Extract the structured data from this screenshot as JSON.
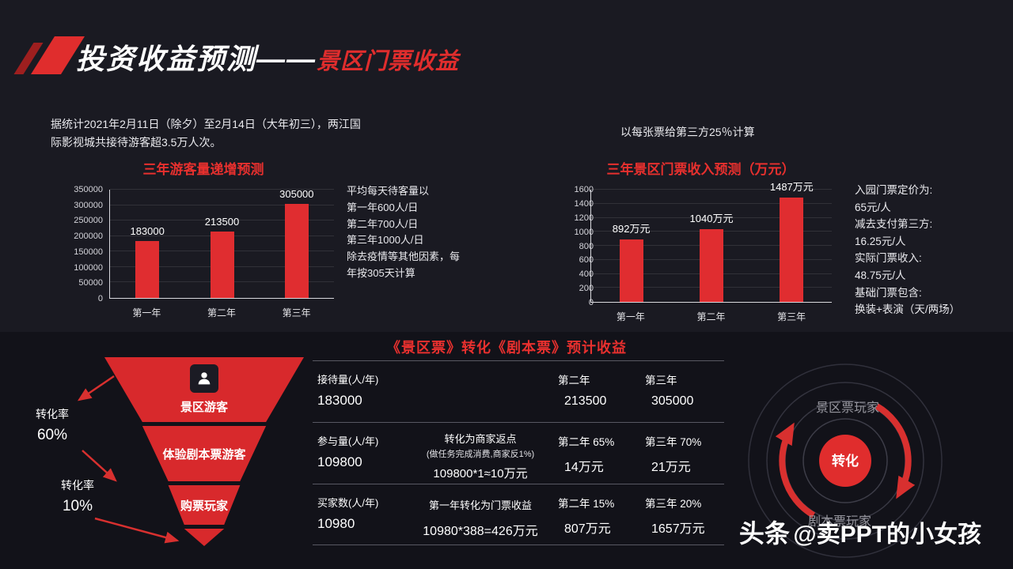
{
  "header": {
    "title_main": "投资收益预测——",
    "title_sub": "景区门票收益"
  },
  "intro": {
    "left_note": "据统计2021年2月11日（除夕）至2月14日（大年初三），两江国际影视城共接待游客超3.5万人次。",
    "right_note": "以每张票给第三方25％计算"
  },
  "chart_data": [
    {
      "type": "bar",
      "title": "三年游客量递增预测",
      "categories": [
        "第一年",
        "第二年",
        "第三年"
      ],
      "values": [
        183000,
        213500,
        305000
      ],
      "labels": [
        "183000",
        "213500",
        "305000"
      ],
      "xlabel": "",
      "ylabel": "",
      "ylim": [
        0,
        350000
      ],
      "yticks": [
        0,
        50000,
        100000,
        150000,
        200000,
        250000,
        300000,
        350000
      ],
      "grid": "horizontal",
      "legend": "none",
      "bar_color": "#e02d30"
    },
    {
      "type": "bar",
      "title": "三年景区门票收入预测（万元）",
      "categories": [
        "第一年",
        "第二年",
        "第三年"
      ],
      "values": [
        892,
        1040,
        1487
      ],
      "labels": [
        "892万元",
        "1040万元",
        "1487万元"
      ],
      "xlabel": "",
      "ylabel": "",
      "ylim": [
        0,
        1600
      ],
      "yticks": [
        0,
        200,
        400,
        600,
        800,
        1000,
        1200,
        1400,
        1600
      ],
      "grid": "horizontal",
      "legend": "none",
      "bar_color": "#e02d30"
    }
  ],
  "chart_notes": {
    "visitors": "平均每天待客量以\n第一年600人/日\n第二年700人/日\n第三年1000人/日\n除去疫情等其他因素，每\n年按305天计算",
    "tickets": "入园门票定价为:\n65元/人\n减去支付第三方:\n16.25元/人\n实际门票收入:\n48.75元/人\n基础门票包含:\n换装+表演（天/两场）"
  },
  "bottom": {
    "title": "《景区票》转化《剧本票》预计收益",
    "funnel": {
      "levels": [
        "景区游客",
        "体验剧本票游客",
        "购票玩家"
      ],
      "rates": [
        {
          "label": "转化率",
          "value": "60%"
        },
        {
          "label": "转化率",
          "value": "10%"
        }
      ]
    },
    "table": {
      "rows": [
        {
          "label": "接待量(人/年)",
          "value": "183000",
          "mid_top": "",
          "mid_sub": "",
          "mid_value": "",
          "y2_label": "第二年",
          "y2_value": "213500",
          "y3_label": "第三年",
          "y3_value": "305000"
        },
        {
          "label": "参与量(人/年)",
          "value": "109800",
          "mid_top": "转化为商家返点",
          "mid_sub": "(做任务完成消费,商家反1%)",
          "mid_value": "109800*1≈10万元",
          "y2_label": "第二年  65%",
          "y2_value": "14万元",
          "y3_label": "第三年  70%",
          "y3_value": "21万元"
        },
        {
          "label": "买家数(人/年)",
          "value": "10980",
          "mid_top": "第一年转化为门票收益",
          "mid_sub": "",
          "mid_value": "10980*388=426万元",
          "y2_label": "第二年  15%",
          "y2_value": "807万元",
          "y3_label": "第三年  20%",
          "y3_value": "1657万元"
        }
      ]
    },
    "cycle": {
      "center": "转化",
      "top_label": "景区票玩家",
      "bottom_label": "剧本票玩家"
    }
  },
  "watermark": {
    "prefix": "头条",
    "handle": "@卖PPT的小女孩"
  },
  "colors": {
    "accent_red": "#e02d2d",
    "background_top": "#1a1a22",
    "background_bottom": "#121219"
  }
}
